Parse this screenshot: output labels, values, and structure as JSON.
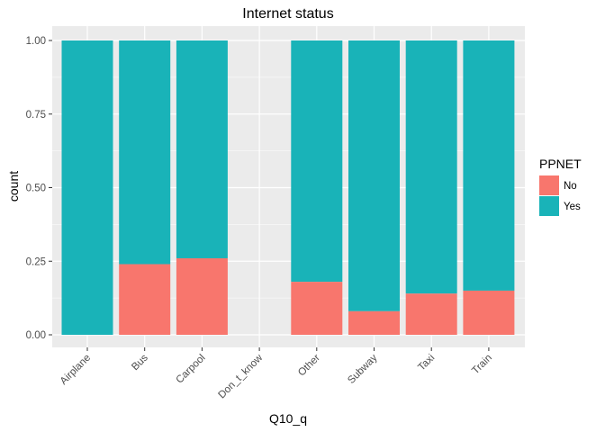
{
  "chart_data": {
    "type": "bar",
    "stacked": true,
    "normalized": true,
    "title": "Internet status",
    "xlabel": "Q10_q",
    "ylabel": "count",
    "categories": [
      "Airplane",
      "Bus",
      "Carpool",
      "Don_t_know",
      "Other",
      "Subway",
      "Taxi",
      "Train"
    ],
    "series": [
      {
        "name": "No",
        "color": "#F8766D",
        "values": [
          0.0,
          0.24,
          0.26,
          0.0,
          0.18,
          0.08,
          0.14,
          0.15
        ]
      },
      {
        "name": "Yes",
        "color": "#00BFC4",
        "values": [
          1.0,
          0.76,
          0.74,
          0.0,
          0.82,
          0.92,
          0.86,
          0.85
        ]
      }
    ],
    "ylim": [
      0,
      1
    ],
    "yticks": [
      0.0,
      0.25,
      0.5,
      0.75,
      1.0
    ],
    "ytick_labels": [
      "0.00",
      "0.25",
      "0.50",
      "0.75",
      "1.00"
    ],
    "grid": true,
    "legend": {
      "title": "PPNET",
      "placement": "right"
    },
    "colors": {
      "panel": "#EBEBEB",
      "grid": "#FFFFFF",
      "no": "#F8766D",
      "yes": "#19B3B8"
    }
  }
}
